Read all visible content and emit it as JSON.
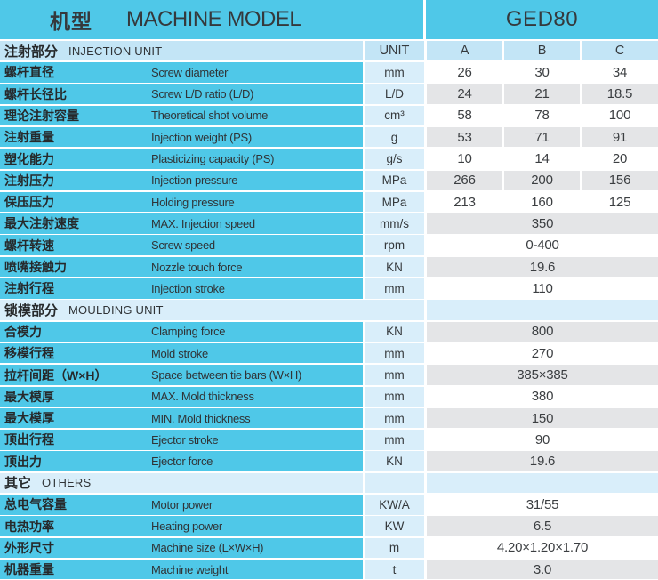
{
  "header": {
    "title_cn": "机型",
    "title_en": "MACHINE MODEL",
    "model": "GED80"
  },
  "columns": {
    "unit": "UNIT",
    "a": "A",
    "b": "B",
    "c": "C"
  },
  "colors": {
    "cyan": "#4FC8E8",
    "section_blue": "#C3E5F6",
    "pale_blue": "#D9EEFA",
    "gray_row": "#E4E5E7",
    "text_dark": "#33373a"
  },
  "sections": [
    {
      "title_cn": "注射部分",
      "title_en": "INJECTION UNIT",
      "rows": [
        {
          "cn": "螺杆直径",
          "en": "Screw diameter",
          "unit": "mm",
          "a": "26",
          "b": "30",
          "c": "34"
        },
        {
          "cn": "螺杆长径比",
          "en": "Screw L/D ratio (L/D)",
          "unit": "L/D",
          "a": "24",
          "b": "21",
          "c": "18.5"
        },
        {
          "cn": "理论注射容量",
          "en": "Theoretical shot volume",
          "unit": "cm³",
          "a": "58",
          "b": "78",
          "c": "100"
        },
        {
          "cn": "注射重量",
          "en": "Injection weight (PS)",
          "unit": "g",
          "a": "53",
          "b": "71",
          "c": "91"
        },
        {
          "cn": "塑化能力",
          "en": "Plasticizing capacity (PS)",
          "unit": "g/s",
          "a": "10",
          "b": "14",
          "c": "20"
        },
        {
          "cn": "注射压力",
          "en": "Injection pressure",
          "unit": "MPa",
          "a": "266",
          "b": "200",
          "c": "156"
        },
        {
          "cn": "保压压力",
          "en": "Holding pressure",
          "unit": "MPa",
          "a": "213",
          "b": "160",
          "c": "125"
        },
        {
          "cn": "最大注射速度",
          "en": "MAX. Injection speed",
          "unit": "mm/s",
          "span": "350"
        },
        {
          "cn": "螺杆转速",
          "en": "Screw speed",
          "unit": "rpm",
          "span": "0-400"
        },
        {
          "cn": "喷嘴接触力",
          "en": "Nozzle touch force",
          "unit": "KN",
          "span": "19.6"
        },
        {
          "cn": "注射行程",
          "en": "Injection stroke",
          "unit": "mm",
          "span": "110"
        }
      ]
    },
    {
      "title_cn": "锁模部分",
      "title_en": "MOULDING UNIT",
      "rows": [
        {
          "cn": "合模力",
          "en": "Clamping force",
          "unit": "KN",
          "span": "800"
        },
        {
          "cn": "移模行程",
          "en": "Mold stroke",
          "unit": "mm",
          "span": "270"
        },
        {
          "cn": "拉杆间距（W×H）",
          "en": "Space between tie bars (W×H)",
          "unit": "mm",
          "span": "385×385"
        },
        {
          "cn": "最大模厚",
          "en": "MAX. Mold thickness",
          "unit": "mm",
          "span": "380"
        },
        {
          "cn": "最大模厚",
          "en": "MIN. Mold thickness",
          "unit": "mm",
          "span": "150"
        },
        {
          "cn": "顶出行程",
          "en": "Ejector stroke",
          "unit": "mm",
          "span": "90"
        },
        {
          "cn": "顶出力",
          "en": "Ejector force",
          "unit": "KN",
          "span": "19.6"
        }
      ]
    },
    {
      "title_cn": "其它",
      "title_en": "OTHERS",
      "rows": [
        {
          "cn": "总电气容量",
          "en": "Motor power",
          "unit": "KW/A",
          "span": "31/55"
        },
        {
          "cn": "电热功率",
          "en": "Heating power",
          "unit": "KW",
          "span": "6.5"
        },
        {
          "cn": "外形尺寸",
          "en": "Machine size (L×W×H)",
          "unit": "m",
          "span": "4.20×1.20×1.70"
        },
        {
          "cn": "机器重量",
          "en": "Machine weight",
          "unit": "t",
          "span": "3.0"
        }
      ]
    }
  ]
}
